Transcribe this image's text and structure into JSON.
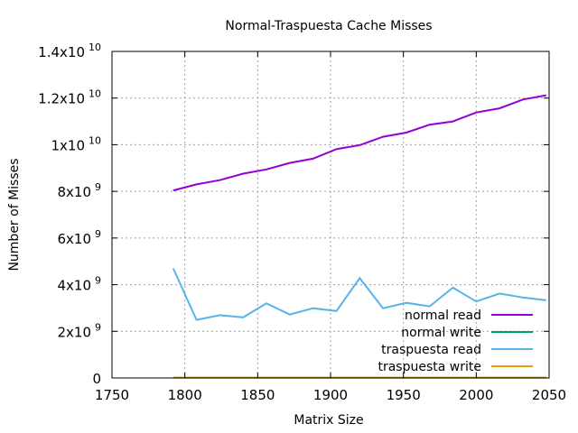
{
  "chart_data": {
    "type": "line",
    "title": "Normal-Traspuesta Cache Misses",
    "xlabel": "Matrix Size",
    "ylabel": "Number of Misses",
    "xlim": [
      1750,
      2050
    ],
    "ylim": [
      0,
      14000000000
    ],
    "grid": true,
    "legend_position": "bottom-right",
    "x_ticks": [
      {
        "value": 1750,
        "label": "1750"
      },
      {
        "value": 1800,
        "label": "1800"
      },
      {
        "value": 1850,
        "label": "1850"
      },
      {
        "value": 1900,
        "label": "1900"
      },
      {
        "value": 1950,
        "label": "1950"
      },
      {
        "value": 2000,
        "label": "2000"
      },
      {
        "value": 2050,
        "label": "2050"
      }
    ],
    "y_ticks": [
      {
        "value": 0,
        "mantissa": "0",
        "exponent": ""
      },
      {
        "value": 2000000000,
        "mantissa": "2x10",
        "exponent": "9"
      },
      {
        "value": 4000000000,
        "mantissa": "4x10",
        "exponent": "9"
      },
      {
        "value": 6000000000,
        "mantissa": "6x10",
        "exponent": "9"
      },
      {
        "value": 8000000000,
        "mantissa": "8x10",
        "exponent": "9"
      },
      {
        "value": 10000000000,
        "mantissa": "1x10",
        "exponent": "10"
      },
      {
        "value": 12000000000,
        "mantissa": "1.2x10",
        "exponent": "10"
      },
      {
        "value": 14000000000,
        "mantissa": "1.4x10",
        "exponent": "10"
      }
    ],
    "x": [
      1792,
      1808,
      1824,
      1840,
      1856,
      1872,
      1888,
      1904,
      1920,
      1936,
      1952,
      1968,
      1984,
      2000,
      2016,
      2032,
      2048
    ],
    "series": [
      {
        "name": "normal read",
        "color": "#9400d3",
        "values": [
          8040000000,
          8300000000,
          8480000000,
          8760000000,
          8940000000,
          9220000000,
          9400000000,
          9810000000,
          9980000000,
          10340000000,
          10520000000,
          10860000000,
          11000000000,
          11380000000,
          11560000000,
          11940000000,
          12120000000
        ]
      },
      {
        "name": "normal write",
        "color": "#009e73",
        "values": [
          15000000,
          15000000,
          15000000,
          15000000,
          15000000,
          15000000,
          15000000,
          15000000,
          15000000,
          15000000,
          15000000,
          15000000,
          15000000,
          15000000,
          15000000,
          15000000,
          15000000
        ]
      },
      {
        "name": "traspuesta read",
        "color": "#56b4e9",
        "values": [
          4700000000,
          2490000000,
          2690000000,
          2600000000,
          3200000000,
          2720000000,
          2990000000,
          2870000000,
          4280000000,
          2990000000,
          3220000000,
          3070000000,
          3870000000,
          3280000000,
          3620000000,
          3450000000,
          3330000000
        ]
      },
      {
        "name": "traspuesta write",
        "color": "#e69f00",
        "values": [
          20000000,
          20000000,
          20000000,
          20000000,
          20000000,
          20000000,
          20000000,
          20000000,
          20000000,
          20000000,
          20000000,
          20000000,
          20000000,
          20000000,
          20000000,
          20000000,
          20000000
        ]
      }
    ]
  }
}
